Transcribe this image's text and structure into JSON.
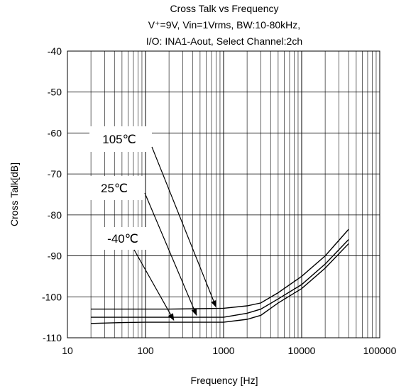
{
  "chart_data": {
    "type": "line",
    "title_lines": [
      "Cross Talk vs Frequency",
      "V⁺=9V, Vin=1Vrms, BW:10-80kHz,",
      "I/O: INA1-Aout, Select Channel:2ch"
    ],
    "xlabel": "Frequency [Hz]",
    "ylabel": "Cross Talk[dB]",
    "x_scale": "log",
    "xlim": [
      10,
      100000
    ],
    "ylim": [
      -110,
      -40
    ],
    "x_ticks": [
      "10",
      "100",
      "1000",
      "10000",
      "100000"
    ],
    "y_ticks": [
      "-40",
      "-50",
      "-60",
      "-70",
      "-80",
      "-90",
      "-100",
      "-110"
    ],
    "grid": true,
    "series": [
      {
        "name": "105℃",
        "x": [
          20,
          50,
          100,
          200,
          500,
          1000,
          2000,
          3000,
          5000,
          10000,
          20000,
          40000
        ],
        "y": [
          -103.0,
          -103.0,
          -103.0,
          -103.0,
          -102.9,
          -102.8,
          -102.2,
          -101.5,
          -99.0,
          -95.0,
          -90.0,
          -83.5
        ]
      },
      {
        "name": "25℃",
        "x": [
          20,
          50,
          100,
          200,
          500,
          1000,
          2000,
          3000,
          5000,
          10000,
          20000,
          40000
        ],
        "y": [
          -105.0,
          -105.0,
          -105.0,
          -105.0,
          -105.0,
          -105.0,
          -104.0,
          -103.0,
          -100.5,
          -97.0,
          -92.0,
          -86.0
        ]
      },
      {
        "name": "-40℃",
        "x": [
          20,
          50,
          100,
          200,
          500,
          1000,
          2000,
          3000,
          5000,
          10000,
          20000,
          40000
        ],
        "y": [
          -106.5,
          -106.3,
          -106.2,
          -106.2,
          -106.2,
          -106.2,
          -105.5,
          -104.5,
          -101.5,
          -98.0,
          -93.0,
          -87.0
        ]
      }
    ],
    "annotations": [
      {
        "text": "105℃",
        "points_to": {
          "x": 800,
          "y": -103.0
        }
      },
      {
        "text": "25℃",
        "points_to": {
          "x": 450,
          "y": -105.0
        }
      },
      {
        "text": "-40℃",
        "points_to": {
          "x": 230,
          "y": -106.2
        }
      }
    ]
  }
}
